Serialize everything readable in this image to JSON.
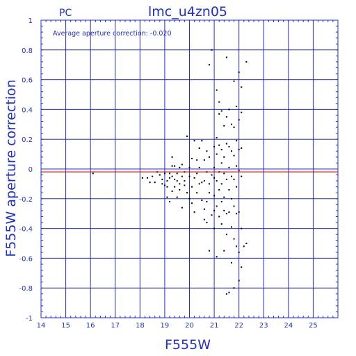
{
  "chart_data": {
    "type": "scatter",
    "title": "lmc_u4zn05",
    "corner_label": "PC",
    "annotation": "Average aperture correction: -0.020",
    "xlabel": "F555W",
    "ylabel": "F555W aperture correction",
    "xlim": [
      14,
      26
    ],
    "ylim": [
      -1,
      1
    ],
    "x_ticks": [
      14,
      15,
      16,
      17,
      18,
      19,
      20,
      21,
      22,
      23,
      24,
      25
    ],
    "y_ticks": [
      -1,
      -0.8,
      -0.6,
      -0.4,
      -0.2,
      0,
      0.2,
      0.4,
      0.6,
      0.8,
      1
    ],
    "x_tick_labels": [
      "14",
      "15",
      "16",
      "17",
      "18",
      "19",
      "20",
      "21",
      "22",
      "23",
      "24",
      "25"
    ],
    "y_tick_labels": [
      "-1",
      "-0.8",
      "-0.6",
      "-0.4",
      "-0.2",
      "0",
      "0.2",
      "0.4",
      "0.6",
      "0.8",
      "1"
    ],
    "grid": true,
    "reference_line": {
      "y": -0.02,
      "color": "#e00000"
    },
    "colors": {
      "axes": "#1f2fd0",
      "grid": "#1f2fd0",
      "points": "#000000",
      "reference": "#e00000"
    },
    "points": [
      [
        16.1,
        -0.03
      ],
      [
        18.1,
        -0.06
      ],
      [
        18.3,
        -0.06
      ],
      [
        18.4,
        -0.09
      ],
      [
        18.5,
        -0.05
      ],
      [
        18.6,
        -0.09
      ],
      [
        18.7,
        -0.02
      ],
      [
        18.8,
        -0.04
      ],
      [
        18.9,
        -0.1
      ],
      [
        18.9,
        -0.07
      ],
      [
        19.0,
        -0.11
      ],
      [
        19.0,
        -0.03
      ],
      [
        19.1,
        -0.08
      ],
      [
        19.1,
        -0.12
      ],
      [
        19.1,
        -0.19
      ],
      [
        19.2,
        -0.03
      ],
      [
        19.2,
        -0.06
      ],
      [
        19.2,
        -0.22
      ],
      [
        19.3,
        0.02
      ],
      [
        19.3,
        -0.05
      ],
      [
        19.3,
        -0.15
      ],
      [
        19.3,
        0.08
      ],
      [
        19.4,
        -0.07
      ],
      [
        19.4,
        -0.12
      ],
      [
        19.4,
        0.02
      ],
      [
        19.5,
        -0.03
      ],
      [
        19.5,
        -0.08
      ],
      [
        19.5,
        -0.19
      ],
      [
        19.6,
        0.01
      ],
      [
        19.6,
        -0.1
      ],
      [
        19.6,
        -0.14
      ],
      [
        19.7,
        -0.05
      ],
      [
        19.7,
        0.03
      ],
      [
        19.7,
        -0.26
      ],
      [
        19.8,
        -0.02
      ],
      [
        19.8,
        -0.08
      ],
      [
        19.8,
        -0.11
      ],
      [
        19.9,
        -0.16
      ],
      [
        19.9,
        0.22
      ],
      [
        20.0,
        -0.05
      ],
      [
        20.0,
        0.01
      ],
      [
        20.0,
        -0.2
      ],
      [
        20.1,
        0.07
      ],
      [
        20.1,
        -0.12
      ],
      [
        20.1,
        -0.23
      ],
      [
        20.2,
        0.19
      ],
      [
        20.2,
        -0.06
      ],
      [
        20.2,
        -0.29
      ],
      [
        20.3,
        0.06
      ],
      [
        20.3,
        -0.03
      ],
      [
        20.3,
        -0.16
      ],
      [
        20.4,
        0.14
      ],
      [
        20.4,
        0.01
      ],
      [
        20.4,
        -0.1
      ],
      [
        20.5,
        -0.09
      ],
      [
        20.5,
        -0.21
      ],
      [
        20.5,
        0.19
      ],
      [
        20.6,
        0.06
      ],
      [
        20.6,
        -0.08
      ],
      [
        20.6,
        -0.27
      ],
      [
        20.6,
        -0.34
      ],
      [
        20.7,
        0.12
      ],
      [
        20.7,
        -0.02
      ],
      [
        20.7,
        -0.22
      ],
      [
        20.7,
        -0.36
      ],
      [
        20.8,
        0.08
      ],
      [
        20.8,
        -0.1
      ],
      [
        20.8,
        -0.16
      ],
      [
        20.8,
        -0.55
      ],
      [
        20.8,
        0.7
      ],
      [
        20.9,
        0.8
      ],
      [
        20.9,
        -0.04
      ],
      [
        20.9,
        -0.31
      ],
      [
        21.0,
        0.15
      ],
      [
        21.0,
        0.01
      ],
      [
        21.0,
        -0.06
      ],
      [
        21.0,
        -0.18
      ],
      [
        21.0,
        -0.28
      ],
      [
        21.0,
        -0.4
      ],
      [
        21.1,
        0.53
      ],
      [
        21.1,
        0.21
      ],
      [
        21.1,
        0.1
      ],
      [
        21.1,
        -0.08
      ],
      [
        21.1,
        -0.25
      ],
      [
        21.1,
        -0.59
      ],
      [
        21.2,
        0.45
      ],
      [
        21.2,
        0.37
      ],
      [
        21.2,
        0.16
      ],
      [
        21.2,
        -0.02
      ],
      [
        21.2,
        -0.14
      ],
      [
        21.2,
        -0.32
      ],
      [
        21.3,
        0.39
      ],
      [
        21.3,
        0.13
      ],
      [
        21.3,
        0.04
      ],
      [
        21.3,
        -0.1
      ],
      [
        21.3,
        -0.22
      ],
      [
        21.3,
        -0.37
      ],
      [
        21.4,
        0.29
      ],
      [
        21.4,
        0.08
      ],
      [
        21.4,
        -0.03
      ],
      [
        21.4,
        -0.19
      ],
      [
        21.4,
        -0.28
      ],
      [
        21.4,
        -0.55
      ],
      [
        21.5,
        0.75
      ],
      [
        21.5,
        0.35
      ],
      [
        21.5,
        0.17
      ],
      [
        21.5,
        -0.07
      ],
      [
        21.5,
        -0.3
      ],
      [
        21.5,
        -0.44
      ],
      [
        21.5,
        -0.84
      ],
      [
        21.6,
        0.4
      ],
      [
        21.6,
        0.15
      ],
      [
        21.6,
        0.01
      ],
      [
        21.6,
        -0.14
      ],
      [
        21.6,
        -0.29
      ],
      [
        21.6,
        -0.83
      ],
      [
        21.7,
        0.3
      ],
      [
        21.7,
        0.12
      ],
      [
        21.7,
        -0.05
      ],
      [
        21.7,
        -0.2
      ],
      [
        21.7,
        -0.39
      ],
      [
        21.7,
        -0.63
      ],
      [
        21.8,
        0.59
      ],
      [
        21.8,
        0.28
      ],
      [
        21.8,
        0.09
      ],
      [
        21.8,
        -0.07
      ],
      [
        21.8,
        -0.25
      ],
      [
        21.8,
        -0.47
      ],
      [
        21.8,
        -0.8
      ],
      [
        21.9,
        0.42
      ],
      [
        21.9,
        0.19
      ],
      [
        21.9,
        0.02
      ],
      [
        21.9,
        -0.12
      ],
      [
        21.9,
        -0.3
      ],
      [
        21.9,
        -0.52
      ],
      [
        22.0,
        0.65
      ],
      [
        22.0,
        0.33
      ],
      [
        22.0,
        0.13
      ],
      [
        22.0,
        -0.01
      ],
      [
        22.0,
        -0.29
      ],
      [
        22.0,
        -0.56
      ],
      [
        22.0,
        -0.75
      ],
      [
        22.1,
        0.55
      ],
      [
        22.1,
        0.38
      ],
      [
        22.1,
        0.14
      ],
      [
        22.1,
        -0.05
      ],
      [
        22.1,
        -0.4
      ],
      [
        22.1,
        -0.66
      ],
      [
        22.2,
        -0.52
      ],
      [
        22.3,
        0.72
      ],
      [
        22.3,
        -0.5
      ]
    ]
  }
}
